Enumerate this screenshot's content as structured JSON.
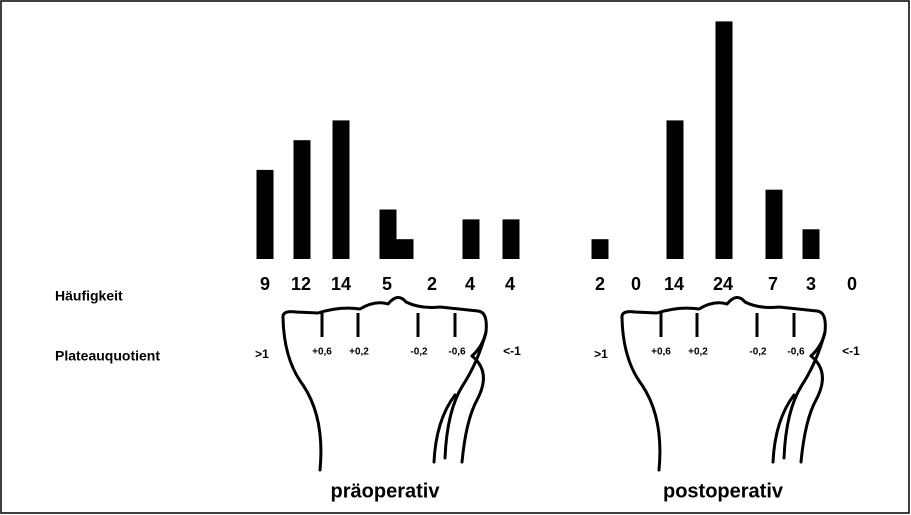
{
  "row_labels": {
    "frequency": "Häufigkeit",
    "plateau": "Plateauquotient"
  },
  "chart_data": [
    {
      "type": "bar",
      "title": "präoperativ",
      "values": [
        9,
        12,
        14,
        5,
        2,
        4,
        4
      ],
      "color": "#000000",
      "scale_labels": [
        ">1",
        "+0,6",
        "+0,2",
        "-0,2",
        "-0,6",
        "<-1"
      ]
    },
    {
      "type": "bar",
      "title": "postoperativ",
      "values": [
        2,
        0,
        14,
        24,
        7,
        3,
        0
      ],
      "color": "#000000",
      "scale_labels": [
        ">1",
        "+0,6",
        "+0,2",
        "-0,2",
        "-0,6",
        "<-1"
      ]
    }
  ]
}
